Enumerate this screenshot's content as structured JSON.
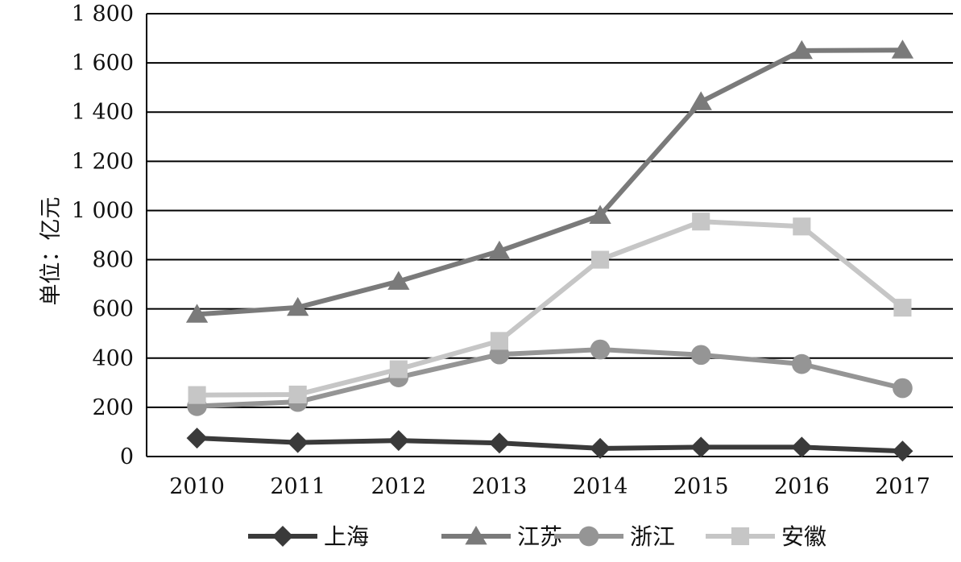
{
  "chart_data": {
    "type": "line",
    "ylabel": "单位：亿元",
    "xlabel": "",
    "categories": [
      "2010",
      "2011",
      "2012",
      "2013",
      "2014",
      "2015",
      "2016",
      "2017"
    ],
    "ylim": [
      0,
      1800
    ],
    "yticks": [
      0,
      200,
      400,
      600,
      800,
      1000,
      1200,
      1400,
      1600,
      1800
    ],
    "ytick_labels": [
      "0",
      "200",
      "400",
      "600",
      "800",
      "1 000",
      "1 200",
      "1 400",
      "1 600",
      "1 800"
    ],
    "grid": "horizontal",
    "legend_position": "bottom",
    "series": [
      {
        "name": "上海",
        "marker": "diamond",
        "color": "#3a3a3a",
        "values": [
          75,
          57,
          65,
          55,
          33,
          38,
          38,
          22
        ]
      },
      {
        "name": "江苏",
        "marker": "triangle",
        "color": "#7a7a7a",
        "values": [
          578,
          606,
          712,
          835,
          980,
          1442,
          1650,
          1652
        ]
      },
      {
        "name": "浙江",
        "marker": "circle",
        "color": "#959595",
        "values": [
          205,
          222,
          322,
          415,
          435,
          413,
          376,
          278
        ]
      },
      {
        "name": "安徽",
        "marker": "square",
        "color": "#c6c6c6",
        "values": [
          250,
          252,
          355,
          470,
          800,
          955,
          935,
          605
        ]
      }
    ]
  }
}
